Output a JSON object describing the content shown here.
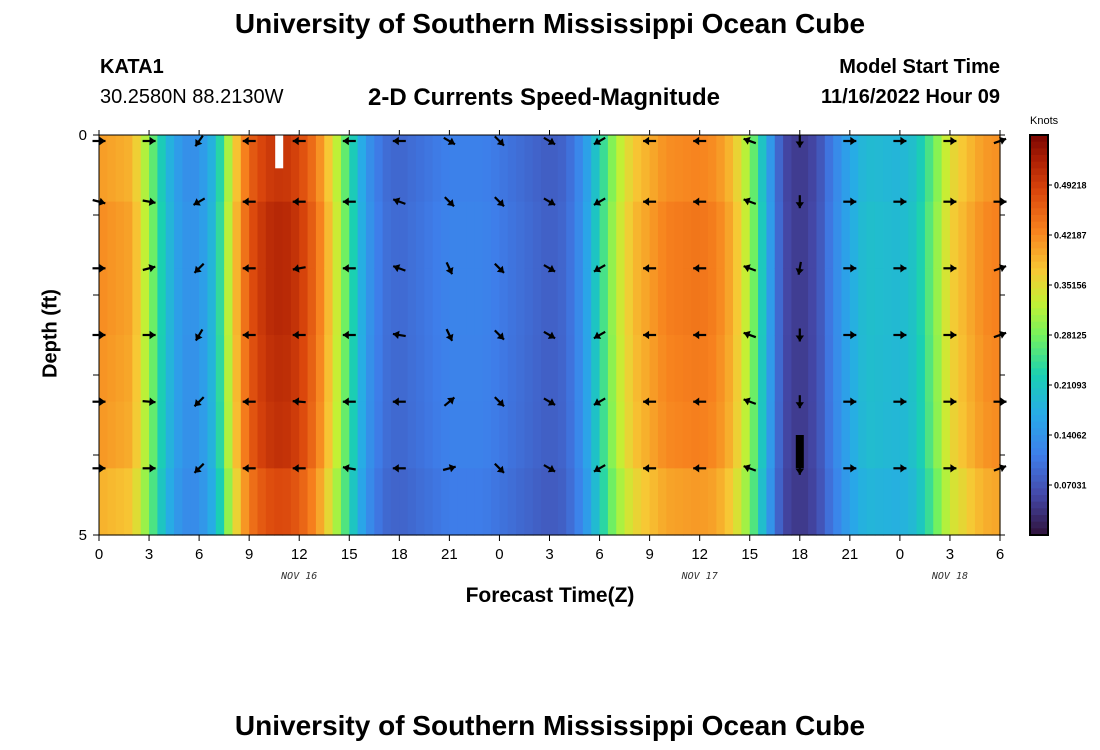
{
  "header": {
    "title": "University of Southern Mississippi Ocean Cube",
    "station": "KATA1",
    "coords": "30.2580N  88.2130W",
    "subtitle": "2-D Currents Speed-Magnitude",
    "model_start_label": "Model Start Time",
    "model_start_value": "11/16/2022 Hour 09"
  },
  "footer": {
    "title": "University of Southern Mississippi Ocean Cube"
  },
  "chart_data": {
    "type": "heatmap",
    "title": "2-D Currents Speed-Magnitude",
    "xlabel": "Forecast Time(Z)",
    "ylabel": "Depth (ft)",
    "colorbar_label": "Knots",
    "colorbar_ticks": [
      "0.49218",
      "0.42187",
      "0.35156",
      "0.28125",
      "0.21093",
      "0.14062",
      "0.07031"
    ],
    "colorbar_values": [
      0.49218,
      0.42187,
      0.35156,
      0.28125,
      0.21093,
      0.14062,
      0.07031
    ],
    "crange": [
      0,
      0.5625
    ],
    "x_ticks": [
      "0",
      "3",
      "6",
      "9",
      "12",
      "15",
      "18",
      "21",
      "0",
      "3",
      "6",
      "9",
      "12",
      "15",
      "18",
      "21",
      "0",
      "3",
      "6"
    ],
    "x_hours": [
      0,
      54
    ],
    "date_labels": [
      {
        "label": "NOV 16",
        "hour": 12
      },
      {
        "label": "NOV 17",
        "hour": 36
      },
      {
        "label": "NOV 18",
        "hour": 51
      }
    ],
    "y_ticks": [
      "0",
      "5"
    ],
    "depth_range_ft": [
      0,
      5
    ],
    "depth_levels": 5,
    "speed_profile_knots": [
      [
        0,
        0.42
      ],
      [
        2,
        0.4
      ],
      [
        3,
        0.3
      ],
      [
        4,
        0.2
      ],
      [
        5,
        0.14
      ],
      [
        6,
        0.14
      ],
      [
        7,
        0.2
      ],
      [
        8,
        0.36
      ],
      [
        9,
        0.47
      ],
      [
        10,
        0.51
      ],
      [
        11,
        0.52
      ],
      [
        12,
        0.5
      ],
      [
        13,
        0.45
      ],
      [
        14,
        0.36
      ],
      [
        15,
        0.25
      ],
      [
        16,
        0.15
      ],
      [
        17,
        0.1
      ],
      [
        18,
        0.09
      ],
      [
        20,
        0.11
      ],
      [
        21,
        0.12
      ],
      [
        23,
        0.12
      ],
      [
        25,
        0.1
      ],
      [
        27,
        0.08
      ],
      [
        28,
        0.09
      ],
      [
        29,
        0.14
      ],
      [
        30,
        0.23
      ],
      [
        31,
        0.32
      ],
      [
        32,
        0.38
      ],
      [
        34,
        0.43
      ],
      [
        36,
        0.44
      ],
      [
        37,
        0.43
      ],
      [
        38,
        0.39
      ],
      [
        39,
        0.31
      ],
      [
        40,
        0.18
      ],
      [
        41,
        0.06
      ],
      [
        42,
        0.04
      ],
      [
        43,
        0.06
      ],
      [
        44,
        0.12
      ],
      [
        45,
        0.17
      ],
      [
        46,
        0.2
      ],
      [
        48,
        0.19
      ],
      [
        49,
        0.21
      ],
      [
        50,
        0.28
      ],
      [
        51,
        0.36
      ],
      [
        53,
        0.42
      ],
      [
        54,
        0.43
      ]
    ],
    "depth_factors": [
      0.97,
      1.0,
      1.0,
      0.99,
      0.98,
      0.93
    ],
    "vector_hours": [
      0,
      3,
      6,
      9,
      12,
      15,
      18,
      21,
      24,
      27,
      30,
      33,
      36,
      39,
      42,
      45,
      48,
      51,
      54
    ],
    "vector_directions_deg": [
      90,
      90,
      225,
      270,
      270,
      270,
      270,
      135,
      135,
      120,
      240,
      270,
      270,
      290,
      180,
      90,
      90,
      90,
      70
    ],
    "vector_direction_rows": [
      [
        0,
        15,
        0,
        0,
        0,
        0
      ],
      [
        0,
        10,
        -15,
        0,
        5,
        0
      ],
      [
        -10,
        15,
        0,
        -15,
        0,
        0
      ],
      [
        0,
        0,
        0,
        0,
        0,
        0
      ],
      [
        0,
        0,
        -10,
        0,
        5,
        0
      ],
      [
        0,
        0,
        0,
        0,
        0,
        10
      ],
      [
        0,
        20,
        20,
        10,
        0,
        0
      ],
      [
        -15,
        0,
        20,
        20,
        -85,
        -60
      ],
      [
        0,
        0,
        0,
        0,
        0,
        0
      ],
      [
        0,
        0,
        0,
        0,
        0,
        0
      ],
      [
        0,
        0,
        0,
        0,
        0,
        0
      ],
      [
        0,
        0,
        0,
        0,
        0,
        0
      ],
      [
        0,
        0,
        0,
        0,
        0,
        0
      ],
      [
        0,
        0,
        0,
        0,
        0,
        0
      ],
      [
        0,
        0,
        10,
        0,
        0,
        0
      ],
      [
        0,
        0,
        0,
        0,
        0,
        0
      ],
      [
        0,
        0,
        0,
        0,
        0,
        0
      ],
      [
        0,
        0,
        0,
        0,
        0,
        0
      ],
      [
        0,
        20,
        0,
        0,
        20,
        0
      ]
    ],
    "missing_markers": [
      {
        "hour": 10.8,
        "depth_rows": [
          0,
          0.5
        ],
        "color": "#ffffff"
      },
      {
        "hour": 42,
        "depth_rows": [
          4.5,
          5
        ],
        "color": "#000000"
      }
    ]
  }
}
